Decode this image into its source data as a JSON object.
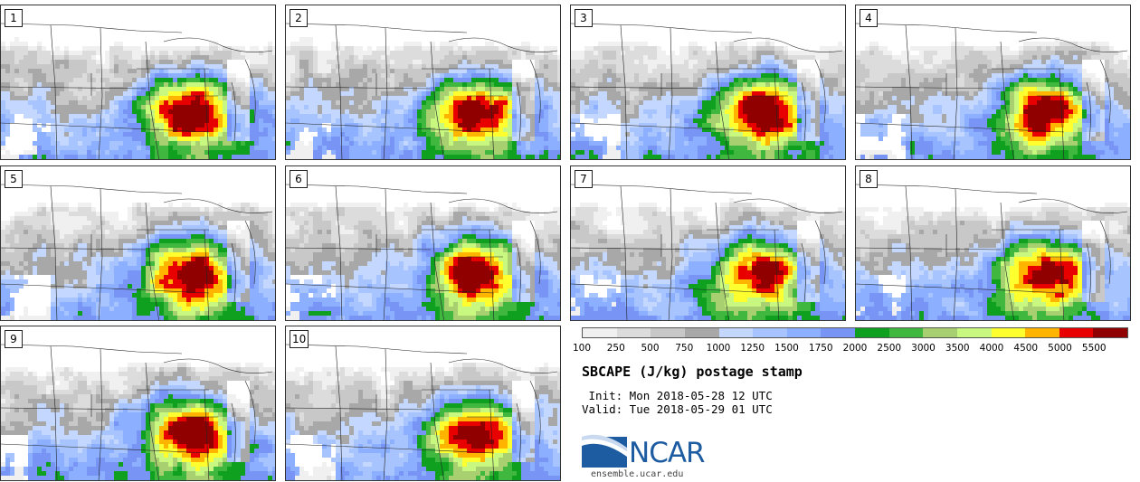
{
  "panels": [
    {
      "label": "1"
    },
    {
      "label": "2"
    },
    {
      "label": "3"
    },
    {
      "label": "4"
    },
    {
      "label": "5"
    },
    {
      "label": "6"
    },
    {
      "label": "7"
    },
    {
      "label": "8"
    },
    {
      "label": "9"
    },
    {
      "label": "10"
    }
  ],
  "colorbar": {
    "labels": [
      "100",
      "250",
      "500",
      "750",
      "1000",
      "1250",
      "1500",
      "1750",
      "2000",
      "2500",
      "3000",
      "3500",
      "4000",
      "4500",
      "5000",
      "5500"
    ],
    "colors": [
      "#f0f0f0",
      "#dcdcdc",
      "#c8c8c8",
      "#a8a8a8",
      "#c4d8ff",
      "#a8c4ff",
      "#8cb0ff",
      "#7894f4",
      "#0fa020",
      "#40b840",
      "#a8d070",
      "#c8f880",
      "#ffff30",
      "#ffb400",
      "#e80000",
      "#900000"
    ]
  },
  "title": "SBCAPE (J/kg) postage stamp",
  "init": " Init: Mon 2018-05-28 12 UTC",
  "valid": "Valid: Tue 2018-05-29 01 UTC",
  "logo": {
    "name": "NCAR",
    "url": "ensemble.ucar.edu",
    "color": "#1e5ca2"
  }
}
